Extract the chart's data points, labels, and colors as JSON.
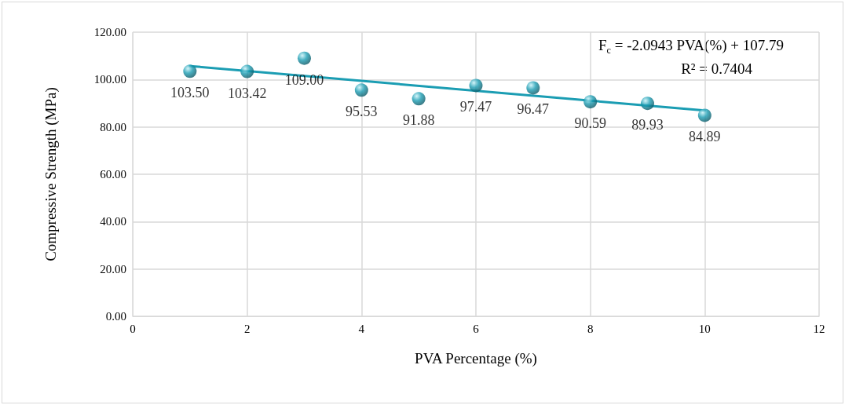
{
  "chart_data": {
    "type": "scatter",
    "xlabel": "PVA Percentage (%)",
    "ylabel": "Compressive Strength (MPa)",
    "x": [
      1,
      2,
      3,
      4,
      5,
      6,
      7,
      8,
      9,
      10
    ],
    "series": [
      {
        "color": "#1b9db3",
        "values": [
          103.5,
          103.42,
          109.0,
          95.53,
          91.88,
          97.47,
          96.47,
          90.59,
          89.93,
          84.89
        ],
        "value_labels": [
          "103.50",
          "103.42",
          "109.00",
          "95.53",
          "91.88",
          "97.47",
          "96.47",
          "90.59",
          "89.93",
          "84.89"
        ],
        "marker": "circle"
      },
      {
        "type": "line",
        "color": "#1b9db3",
        "x": [
          1,
          10
        ],
        "values": [
          105.7,
          86.9
        ],
        "marker": "none",
        "line_style": "solid"
      }
    ],
    "xlim": [
      0,
      12
    ],
    "xticks": [
      0,
      2,
      4,
      6,
      8,
      10,
      12
    ],
    "ylim": [
      0,
      120
    ],
    "yticks": [
      {
        "value": 0,
        "label": "0.00"
      },
      {
        "value": 20,
        "label": "20.00"
      },
      {
        "value": 40,
        "label": "40.00"
      },
      {
        "value": 60,
        "label": "60.00"
      },
      {
        "value": 80,
        "label": "80.00"
      },
      {
        "value": 100,
        "label": "100.00"
      },
      {
        "value": 120,
        "label": "120.00"
      }
    ],
    "grid": true,
    "annotations": [
      "F$_{c}$ = -2.0943 PVA(%) + 107.79",
      "R² = 0.7404"
    ]
  }
}
